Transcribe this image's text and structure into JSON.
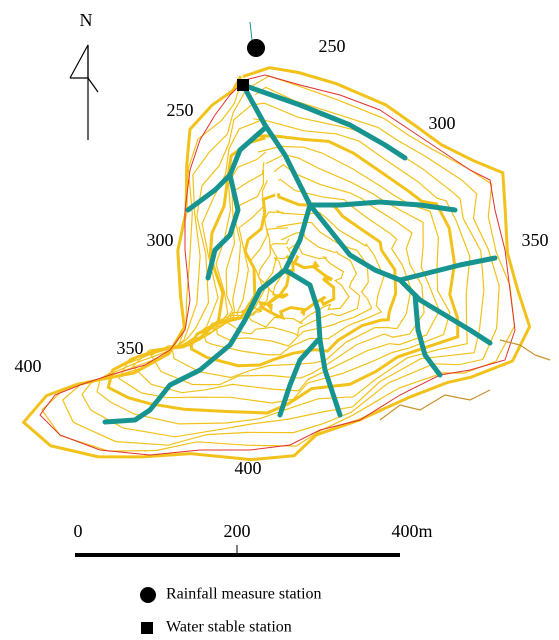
{
  "north": "N",
  "contour_labels": [
    "250",
    "250",
    "300",
    "300",
    "350",
    "350",
    "400",
    "400"
  ],
  "scale": {
    "labels": [
      "0",
      "200",
      "400m"
    ]
  },
  "legend": {
    "items": [
      "Rainfall measure station",
      "Water stable station"
    ]
  }
}
